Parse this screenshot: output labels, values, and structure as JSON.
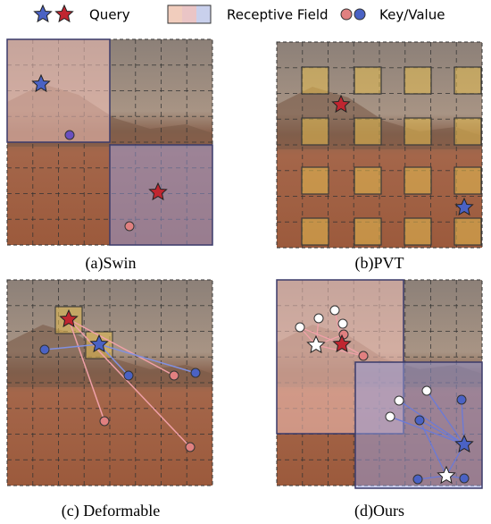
{
  "legend": {
    "query": "Query",
    "receptive_field": "Receptive Field",
    "key_value": "Key/Value"
  },
  "panels": [
    {
      "caption": "(a)Swin"
    },
    {
      "caption": "(b)PVT"
    },
    {
      "caption": "(c) Deformable"
    },
    {
      "caption": "(d)Ours"
    }
  ]
}
